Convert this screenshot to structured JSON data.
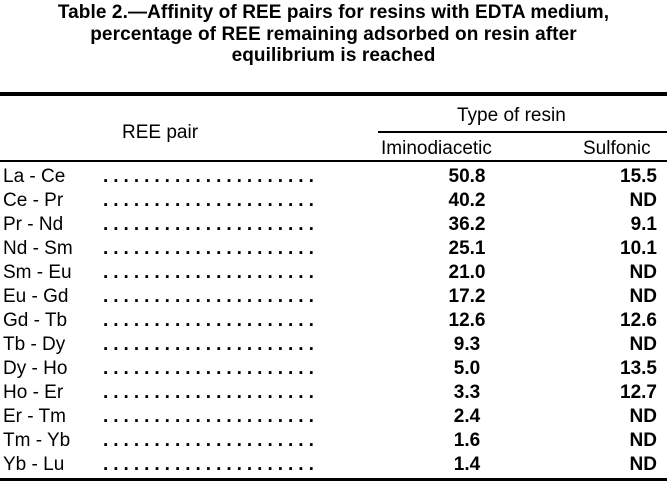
{
  "caption": {
    "line1": "Table 2.—Affinity of REE pairs for resins with EDTA medium,",
    "line2": "percentage of REE remaining adsorbed on resin after",
    "line3": "equilibrium is reached"
  },
  "headers": {
    "pair": "REE pair",
    "group": "Type of resin",
    "col1": "Iminodiacetic",
    "col2": "Sulfonic"
  },
  "leader": "..........................................",
  "rows": [
    {
      "pair": "La - Ce",
      "iminodiacetic": "50.8",
      "sulfonic": "15.5"
    },
    {
      "pair": "Ce - Pr",
      "iminodiacetic": "40.2",
      "sulfonic": "ND"
    },
    {
      "pair": "Pr - Nd",
      "iminodiacetic": "36.2",
      "sulfonic": "9.1"
    },
    {
      "pair": "Nd - Sm",
      "iminodiacetic": "25.1",
      "sulfonic": "10.1"
    },
    {
      "pair": "Sm - Eu",
      "iminodiacetic": "21.0",
      "sulfonic": "ND"
    },
    {
      "pair": "Eu - Gd",
      "iminodiacetic": "17.2",
      "sulfonic": "ND"
    },
    {
      "pair": "Gd - Tb",
      "iminodiacetic": "12.6",
      "sulfonic": "12.6"
    },
    {
      "pair": "Tb - Dy",
      "iminodiacetic": "9.3",
      "sulfonic": "ND"
    },
    {
      "pair": "Dy - Ho",
      "iminodiacetic": "5.0",
      "sulfonic": "13.5"
    },
    {
      "pair": "Ho - Er",
      "iminodiacetic": "3.3",
      "sulfonic": "12.7"
    },
    {
      "pair": "Er - Tm",
      "iminodiacetic": "2.4",
      "sulfonic": "ND"
    },
    {
      "pair": "Tm - Yb",
      "iminodiacetic": "1.6",
      "sulfonic": "ND"
    },
    {
      "pair": "Yb - Lu",
      "iminodiacetic": "1.4",
      "sulfonic": "ND"
    }
  ]
}
